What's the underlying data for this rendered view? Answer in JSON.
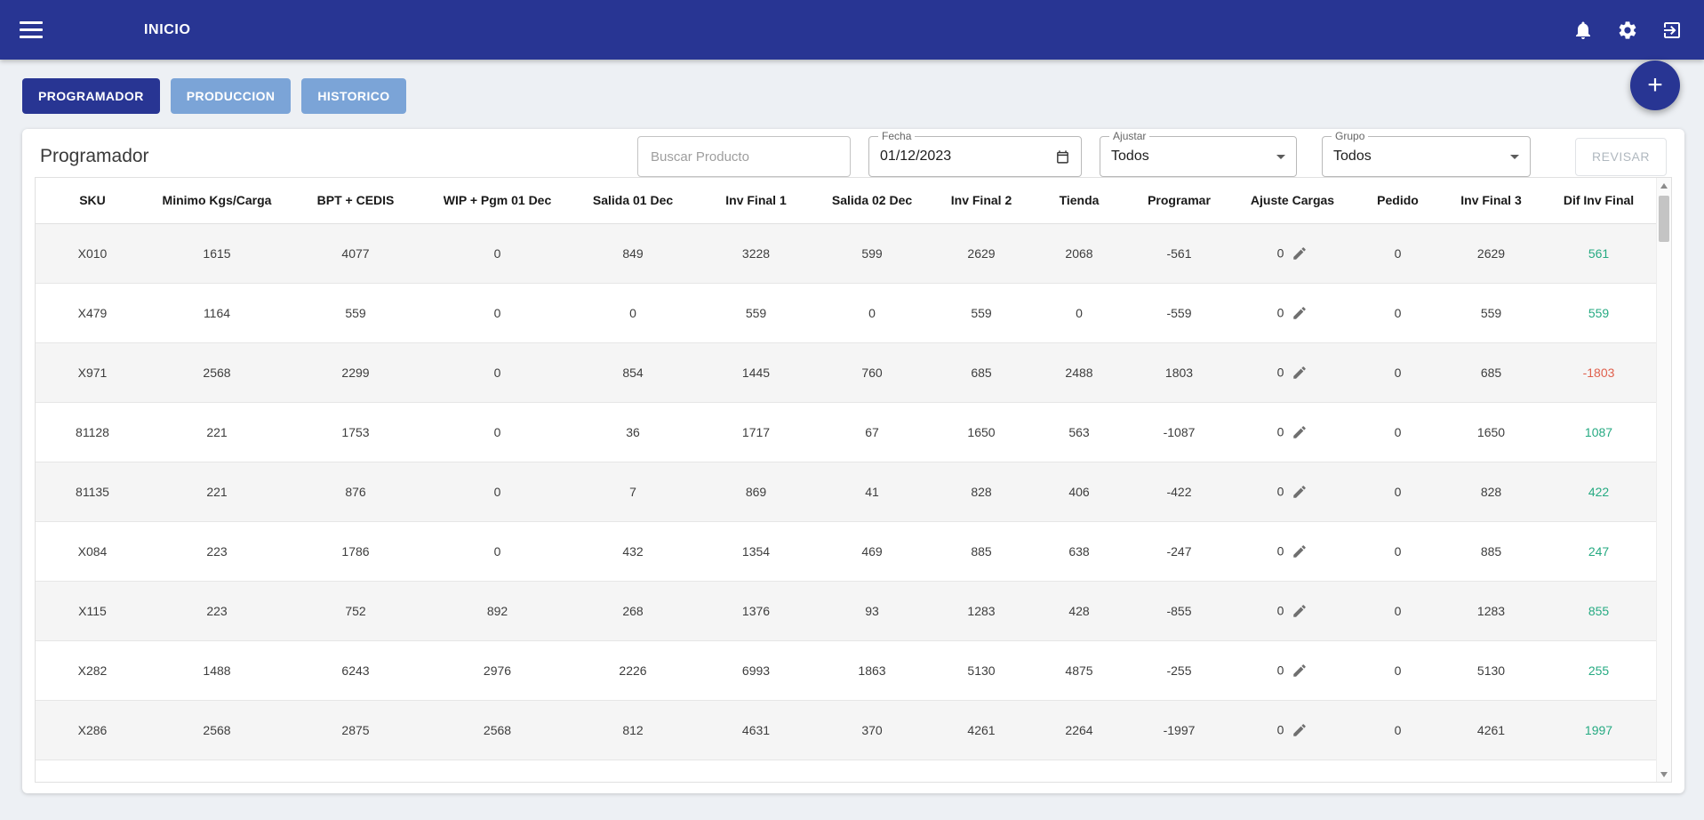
{
  "navbar": {
    "title": "INICIO"
  },
  "tabs": [
    {
      "label": "PROGRAMADOR",
      "active": true
    },
    {
      "label": "PRODUCCION",
      "active": false
    },
    {
      "label": "HISTORICO",
      "active": false
    }
  ],
  "fab_label": "+",
  "page": {
    "title": "Programador"
  },
  "filters": {
    "search_placeholder": "Buscar Producto",
    "fecha_label": "Fecha",
    "fecha_value": "01/12/2023",
    "ajustar_label": "Ajustar",
    "ajustar_value": "Todos",
    "grupo_label": "Grupo",
    "grupo_value": "Todos",
    "revisar_label": "REVISAR"
  },
  "table": {
    "columns": [
      "SKU",
      "Minimo Kgs/Carga",
      "BPT + CEDIS",
      "WIP + Pgm 01 Dec",
      "Salida 01 Dec",
      "Inv Final 1",
      "Salida 02 Dec",
      "Inv Final 2",
      "Tienda",
      "Programar",
      "Ajuste Cargas",
      "Pedido",
      "Inv Final 3",
      "Dif Inv Final"
    ],
    "rows": [
      [
        "X010",
        "1615",
        "4077",
        "0",
        "849",
        "3228",
        "599",
        "2629",
        "2068",
        "-561",
        "0",
        "0",
        "2629",
        "561"
      ],
      [
        "X479",
        "1164",
        "559",
        "0",
        "0",
        "559",
        "0",
        "559",
        "0",
        "-559",
        "0",
        "0",
        "559",
        "559"
      ],
      [
        "X971",
        "2568",
        "2299",
        "0",
        "854",
        "1445",
        "760",
        "685",
        "2488",
        "1803",
        "0",
        "0",
        "685",
        "-1803"
      ],
      [
        "81128",
        "221",
        "1753",
        "0",
        "36",
        "1717",
        "67",
        "1650",
        "563",
        "-1087",
        "0",
        "0",
        "1650",
        "1087"
      ],
      [
        "81135",
        "221",
        "876",
        "0",
        "7",
        "869",
        "41",
        "828",
        "406",
        "-422",
        "0",
        "0",
        "828",
        "422"
      ],
      [
        "X084",
        "223",
        "1786",
        "0",
        "432",
        "1354",
        "469",
        "885",
        "638",
        "-247",
        "0",
        "0",
        "885",
        "247"
      ],
      [
        "X115",
        "223",
        "752",
        "892",
        "268",
        "1376",
        "93",
        "1283",
        "428",
        "-855",
        "0",
        "0",
        "1283",
        "855"
      ],
      [
        "X282",
        "1488",
        "6243",
        "2976",
        "2226",
        "6993",
        "1863",
        "5130",
        "4875",
        "-255",
        "0",
        "0",
        "5130",
        "255"
      ],
      [
        "X286",
        "2568",
        "2875",
        "2568",
        "812",
        "4631",
        "370",
        "4261",
        "2264",
        "-1997",
        "0",
        "0",
        "4261",
        "1997"
      ]
    ]
  },
  "colors": {
    "primary": "#283593",
    "tab_inactive": "#7ba4d7",
    "positive": "#26aa82",
    "negative": "#e0604d"
  }
}
